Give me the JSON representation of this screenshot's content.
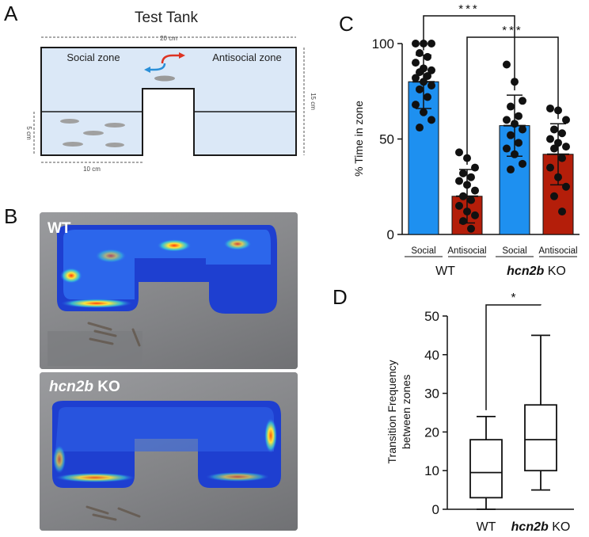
{
  "panels": {
    "a": "A",
    "b": "B",
    "c": "C",
    "d": "D"
  },
  "tank": {
    "title": "Test Tank",
    "width_label": "20 cm",
    "height_label": "15 cm",
    "side_height_label": "5 cm",
    "bottom_width_label": "10 cm",
    "social_zone": "Social zone",
    "antisocial_zone": "Antisocial zone"
  },
  "heatmaps": {
    "wt": {
      "prefix": "WT",
      "suffix": ""
    },
    "ko": {
      "prefix": "hcn2b",
      "suffix": " KO"
    }
  },
  "colors": {
    "social_bar": "#1e90f0",
    "antisocial_bar": "#b41e0a",
    "tank_water": "#dbe8f7"
  },
  "chart_data": [
    {
      "id": "C",
      "type": "bar",
      "ylabel": "% Time in zone",
      "ylim": [
        0,
        100
      ],
      "yticks": [
        0,
        50,
        100
      ],
      "categories": [
        "Social",
        "Antisocial",
        "Social",
        "Antisocial"
      ],
      "group_labels": [
        {
          "main": "WT",
          "italic": ""
        },
        {
          "main": " KO",
          "italic": "hcn2b"
        }
      ],
      "values": [
        80,
        20,
        57,
        42
      ],
      "errors": [
        14,
        14,
        16,
        16
      ],
      "bar_colors": [
        "#1e90f0",
        "#b41e0a",
        "#1e90f0",
        "#b41e0a"
      ],
      "points": [
        [
          100,
          100,
          100,
          95,
          93,
          90,
          87,
          86,
          85,
          83,
          82,
          80,
          78,
          76,
          72,
          68,
          64,
          60,
          56
        ],
        [
          43,
          40,
          35,
          32,
          30,
          28,
          26,
          23,
          20,
          18,
          15,
          12,
          10,
          7,
          3
        ],
        [
          89,
          80,
          70,
          67,
          62,
          60,
          58,
          55,
          52,
          48,
          45,
          42,
          37,
          34
        ],
        [
          66,
          65,
          60,
          55,
          53,
          50,
          48,
          46,
          45,
          40,
          35,
          30,
          25,
          20,
          12
        ]
      ],
      "significance": [
        {
          "from": 0,
          "to": 2,
          "label": "***"
        },
        {
          "from": 1,
          "to": 3,
          "label": "***"
        }
      ]
    },
    {
      "id": "D",
      "type": "box",
      "ylabel_line1": "Transition Frequency",
      "ylabel_line2": "between zones",
      "ylim": [
        0,
        50
      ],
      "yticks": [
        0,
        10,
        20,
        30,
        40,
        50
      ],
      "groups": [
        {
          "main": "WT",
          "italic": "",
          "min": 0,
          "q1": 3,
          "median": 9.5,
          "q3": 18,
          "max": 24
        },
        {
          "main": " KO",
          "italic": "hcn2b",
          "min": 5,
          "q1": 10,
          "median": 18,
          "q3": 27,
          "max": 45
        }
      ],
      "significance": {
        "label": "*"
      }
    }
  ]
}
